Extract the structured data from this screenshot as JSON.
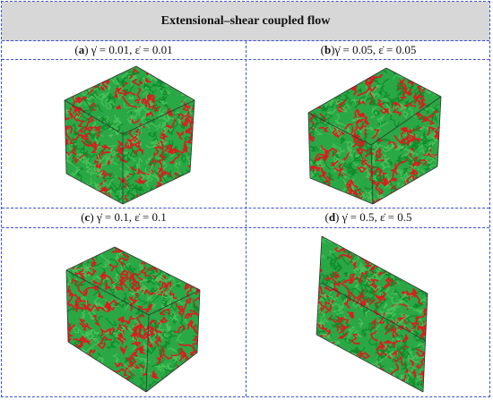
{
  "title": "Extensional–shear coupled flow",
  "panels": [
    {
      "label": "a",
      "caption": " γ̇ = 0.01,  ε̇ = 0.01"
    },
    {
      "label": "b",
      "caption": "γ̇ = 0.05,  ε̇ = 0.05"
    },
    {
      "label": "c",
      "caption": " γ̇ = 0.1,  ε̇ = 0.1"
    },
    {
      "label": "d",
      "caption": " γ̇ = 0.5,  ε̇ = 0.5"
    }
  ],
  "colors": {
    "border": "#3a4fd6",
    "header_bg": "#d7d7d7",
    "chain_green": "#1fa83a",
    "chain_red": "#e0191d"
  }
}
